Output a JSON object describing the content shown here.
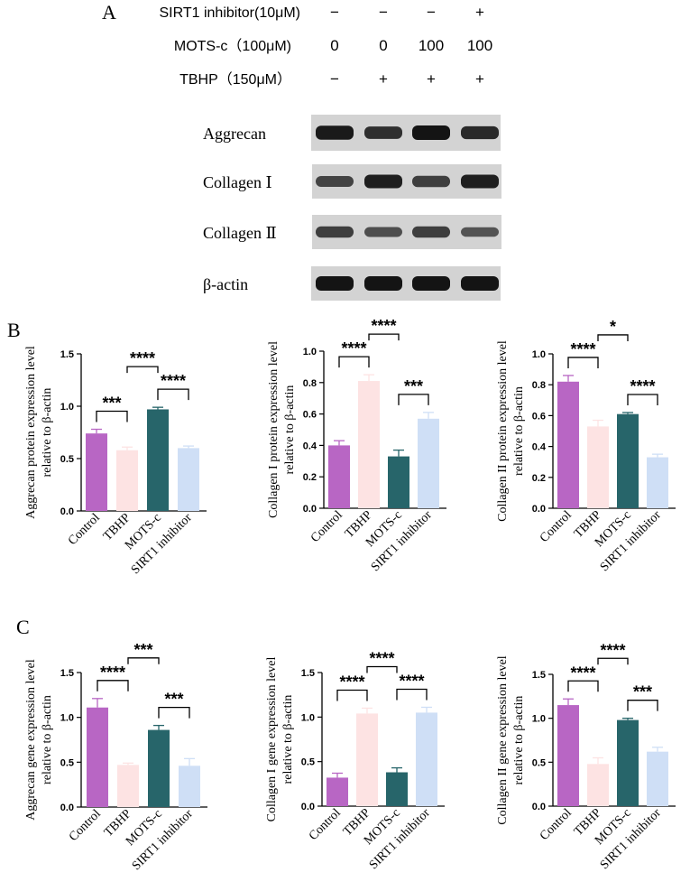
{
  "panel_a": {
    "letter": "A",
    "conditions": [
      {
        "label": "SIRT1 inhibitor(10μM)",
        "values": [
          "−",
          "−",
          "−",
          "+"
        ]
      },
      {
        "label": "MOTS-c（100μM)",
        "values": [
          "0",
          "0",
          "100",
          "100"
        ]
      },
      {
        "label": "TBHP（150μM）",
        "values": [
          "−",
          "+",
          "+",
          "+"
        ]
      }
    ],
    "blots": [
      {
        "label": "Aggrecan",
        "intensity": [
          0.95,
          0.75,
          1.0,
          0.8
        ]
      },
      {
        "label": "Collagen Ⅰ",
        "intensity": [
          0.55,
          0.9,
          0.6,
          0.9
        ]
      },
      {
        "label": "Collagen Ⅱ",
        "intensity": [
          0.6,
          0.45,
          0.6,
          0.4
        ]
      },
      {
        "label": "β-actin",
        "intensity": [
          1.0,
          1.0,
          1.0,
          1.0
        ]
      }
    ]
  },
  "panel_b": {
    "letter": "B"
  },
  "panel_c": {
    "letter": "C"
  },
  "group_colors": [
    "#b866c4",
    "#fde3e3",
    "#27656a",
    "#cfdff6"
  ],
  "chart_data": [
    {
      "type": "bar",
      "panel": "B",
      "categories": [
        "Control",
        "TBHP",
        "MOTS-c",
        "SIRT1 inhibitor"
      ],
      "values": [
        0.74,
        0.58,
        0.97,
        0.6
      ],
      "errors": [
        0.04,
        0.03,
        0.02,
        0.02
      ],
      "ylabel": [
        "Aggrecan protein expression level",
        "relative to β-actin"
      ],
      "ylim": [
        0,
        1.5
      ],
      "yticks": [
        "0.0",
        "0.5",
        "1.0",
        "1.5"
      ],
      "significance": [
        {
          "from": 0,
          "to": 1,
          "label": "***"
        },
        {
          "from": 2,
          "to": 3,
          "label": "****"
        },
        {
          "from": 1,
          "to": 2,
          "label": "****"
        }
      ]
    },
    {
      "type": "bar",
      "panel": "B",
      "categories": [
        "Control",
        "TBHP",
        "MOTS-c",
        "SIRT1 inhibitor"
      ],
      "values": [
        0.4,
        0.81,
        0.33,
        0.57
      ],
      "errors": [
        0.03,
        0.04,
        0.04,
        0.04
      ],
      "ylabel": [
        "Collagen I protein expression level",
        "relative to β-actin"
      ],
      "ylim": [
        0,
        1.0
      ],
      "yticks": [
        "0.0",
        "0.2",
        "0.4",
        "0.6",
        "0.8",
        "1.0"
      ],
      "significance": [
        {
          "from": 0,
          "to": 1,
          "label": "****"
        },
        {
          "from": 2,
          "to": 3,
          "label": "***"
        },
        {
          "from": 1,
          "to": 2,
          "label": "****"
        }
      ]
    },
    {
      "type": "bar",
      "panel": "B",
      "categories": [
        "Control",
        "TBHP",
        "MOTS-c",
        "SIRT1 inhibitor"
      ],
      "values": [
        0.82,
        0.53,
        0.61,
        0.33
      ],
      "errors": [
        0.04,
        0.04,
        0.01,
        0.02
      ],
      "ylabel": [
        "Collagen II protein expression level",
        "relative to β-actin"
      ],
      "ylim": [
        0,
        1.0
      ],
      "yticks": [
        "0.0",
        "0.2",
        "0.4",
        "0.6",
        "0.8",
        "1.0"
      ],
      "significance": [
        {
          "from": 0,
          "to": 1,
          "label": "****"
        },
        {
          "from": 2,
          "to": 3,
          "label": "****"
        },
        {
          "from": 1,
          "to": 2,
          "label": "*"
        }
      ]
    },
    {
      "type": "bar",
      "panel": "C",
      "categories": [
        "Control",
        "TBHP",
        "MOTS-c",
        "SIRT1 inhibitor"
      ],
      "values": [
        1.11,
        0.47,
        0.86,
        0.46
      ],
      "errors": [
        0.1,
        0.02,
        0.05,
        0.08
      ],
      "ylabel": [
        "Aggrecan gene expression level",
        "relative to β-actin"
      ],
      "ylim": [
        0,
        1.5
      ],
      "yticks": [
        "0.0",
        "0.5",
        "1.0",
        "1.5"
      ],
      "significance": [
        {
          "from": 0,
          "to": 1,
          "label": "****"
        },
        {
          "from": 2,
          "to": 3,
          "label": "***"
        },
        {
          "from": 1,
          "to": 2,
          "label": "***"
        }
      ]
    },
    {
      "type": "bar",
      "panel": "C",
      "categories": [
        "Control",
        "TBHP",
        "MOTS-c",
        "SIRT1 inhibitor"
      ],
      "values": [
        0.32,
        1.04,
        0.38,
        1.05
      ],
      "errors": [
        0.05,
        0.06,
        0.05,
        0.06
      ],
      "ylabel": [
        "Collagen I  gene expression level",
        "relative to β-actin"
      ],
      "ylim": [
        0,
        1.5
      ],
      "yticks": [
        "0.0",
        "0.5",
        "1.0",
        "1.5"
      ],
      "significance": [
        {
          "from": 0,
          "to": 1,
          "label": "****"
        },
        {
          "from": 2,
          "to": 3,
          "label": "****"
        },
        {
          "from": 1,
          "to": 2,
          "label": "****"
        }
      ]
    },
    {
      "type": "bar",
      "panel": "C",
      "categories": [
        "Control",
        "TBHP",
        "MOTS-c",
        "SIRT1 inhibitor"
      ],
      "values": [
        1.15,
        0.48,
        0.98,
        0.62
      ],
      "errors": [
        0.07,
        0.07,
        0.02,
        0.05
      ],
      "ylabel": [
        "Collagen II gene expression level",
        "relative to β-actin"
      ],
      "ylim": [
        0,
        1.5
      ],
      "yticks": [
        "0.0",
        "0.5",
        "1.0",
        "1.5"
      ],
      "significance": [
        {
          "from": 0,
          "to": 1,
          "label": "****"
        },
        {
          "from": 2,
          "to": 3,
          "label": "***"
        },
        {
          "from": 1,
          "to": 2,
          "label": "****"
        }
      ]
    }
  ]
}
